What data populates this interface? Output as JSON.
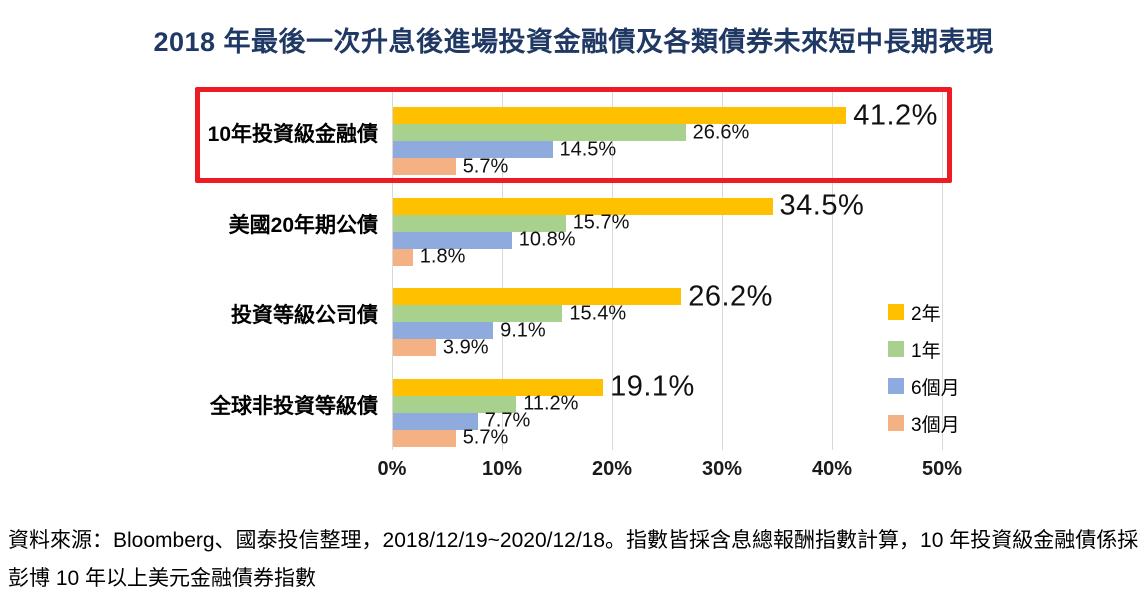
{
  "title": "2018 年最後一次升息後進場投資金融債及各類債券未來短中長期表現",
  "title_color": "#1F3864",
  "chart_data": {
    "type": "bar",
    "orientation": "horizontal",
    "title": "2018 年最後一次升息後進場投資金融債及各類債券未來短中長期表現",
    "categories": [
      "10年投資級金融債",
      "美國20年期公債",
      "投資等級公司債",
      "全球非投資等級債"
    ],
    "series": [
      {
        "name": "2年",
        "color": "#FFC000",
        "values": [
          41.2,
          34.5,
          26.2,
          19.1
        ]
      },
      {
        "name": "1年",
        "color": "#A9D18E",
        "values": [
          26.6,
          15.7,
          15.4,
          11.2
        ]
      },
      {
        "name": "6個月",
        "color": "#8FAADC",
        "values": [
          14.5,
          10.8,
          9.1,
          7.7
        ]
      },
      {
        "name": "3個月",
        "color": "#F4B183",
        "values": [
          5.7,
          1.8,
          3.9,
          5.7
        ]
      }
    ],
    "value_label_suffix": "%",
    "xlabel": "",
    "ylabel": "",
    "xlim": [
      0,
      50
    ],
    "xticks": [
      "0%",
      "10%",
      "20%",
      "30%",
      "40%",
      "50%"
    ],
    "grid": true,
    "gridline_color": "#D9D9D9",
    "legend_position": "right",
    "highlight": {
      "style": "red-box",
      "category": "10年投資級金融債",
      "category_index": 0,
      "color": "#ED1C24"
    }
  },
  "footer": {
    "source_text": "資料來源：Bloomberg、國泰投信整理，2018/12/19~2020/12/18。指數皆採含息總報酬指數計算，10 年投資級金融債係採彭博 10 年以上美元金融債券指數"
  }
}
